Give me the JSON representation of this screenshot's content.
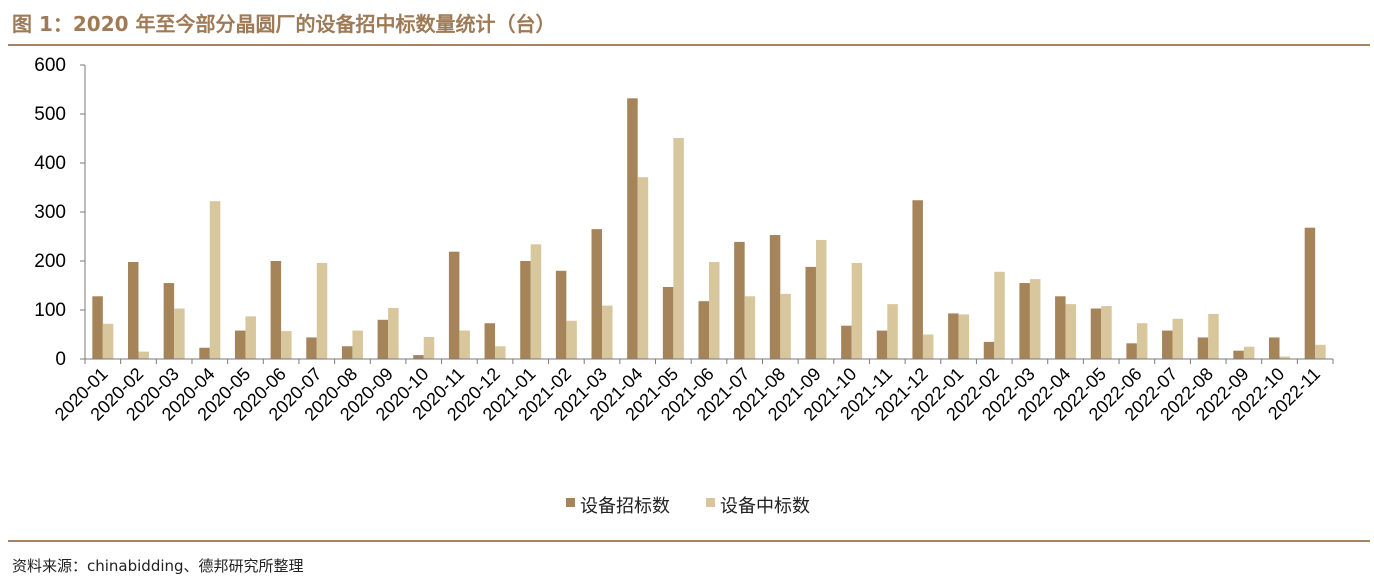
{
  "figure_title": "图 1：2020 年至今部分晶圆厂的设备招中标数量统计（台）",
  "source": "资料来源：chinabidding、德邦研究所整理",
  "colors": {
    "series1": "#a68459",
    "series2": "#d8c69c",
    "rule": "#a88460",
    "title": "#9e7a56"
  },
  "chart_data": {
    "type": "bar",
    "title": "",
    "xlabel": "",
    "ylabel": "",
    "ylim": [
      0,
      600
    ],
    "yticks": [
      0,
      100,
      200,
      300,
      400,
      500,
      600
    ],
    "grid": false,
    "legend_position": "bottom",
    "categories": [
      "2020-01",
      "2020-02",
      "2020-03",
      "2020-04",
      "2020-05",
      "2020-06",
      "2020-07",
      "2020-08",
      "2020-09",
      "2020-10",
      "2020-11",
      "2020-12",
      "2021-01",
      "2021-02",
      "2021-03",
      "2021-04",
      "2021-05",
      "2021-06",
      "2021-07",
      "2021-08",
      "2021-09",
      "2021-10",
      "2021-11",
      "2021-12",
      "2022-01",
      "2022-02",
      "2022-03",
      "2022-04",
      "2022-05",
      "2022-06",
      "2022-07",
      "2022-08",
      "2022-09",
      "2022-10",
      "2022-11"
    ],
    "series": [
      {
        "name": "设备招标数",
        "values": [
          128,
          198,
          155,
          23,
          58,
          200,
          44,
          26,
          80,
          8,
          219,
          73,
          200,
          180,
          265,
          532,
          147,
          118,
          239,
          253,
          188,
          68,
          58,
          324,
          93,
          35,
          155,
          128,
          103,
          32,
          58,
          44,
          17,
          44,
          268
        ]
      },
      {
        "name": "设备中标数",
        "values": [
          72,
          15,
          103,
          322,
          87,
          57,
          196,
          58,
          104,
          45,
          58,
          26,
          234,
          78,
          109,
          371,
          451,
          198,
          128,
          133,
          243,
          196,
          112,
          50,
          91,
          178,
          163,
          112,
          108,
          73,
          82,
          92,
          25,
          5,
          29
        ]
      }
    ]
  }
}
